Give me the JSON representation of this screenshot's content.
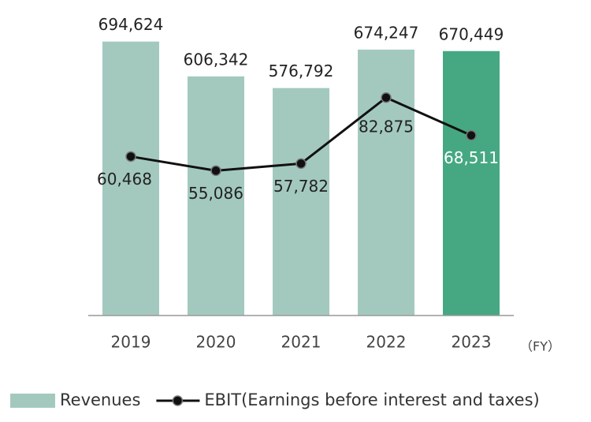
{
  "chart_data": {
    "type": "bar",
    "categories": [
      "2019",
      "2020",
      "2021",
      "2022",
      "2023"
    ],
    "x_label": "（FY）",
    "series": [
      {
        "name": "Revenues",
        "type": "bar",
        "color": "#a3c9bf",
        "colors": [
          "#a3c9bf",
          "#a3c9bf",
          "#a3c9bf",
          "#a3c9bf",
          "#45a882"
        ],
        "values": [
          694624,
          606342,
          576792,
          674247,
          670449
        ],
        "value_labels": [
          "694,624",
          "606,342",
          "576,792",
          "674,247",
          "670,449"
        ]
      },
      {
        "name": "EBIT(Earnings before interest and taxes)",
        "type": "line",
        "axis": "y2",
        "color": "#111111",
        "values": [
          60468,
          55086,
          57782,
          82875,
          68511
        ],
        "value_labels": [
          "60,468",
          "55,086",
          "57,782",
          "82,875",
          "68,511"
        ]
      }
    ],
    "ylim": [
      0,
      800000
    ],
    "y2lim": [
      0,
      120000
    ],
    "legend": "bottom"
  }
}
